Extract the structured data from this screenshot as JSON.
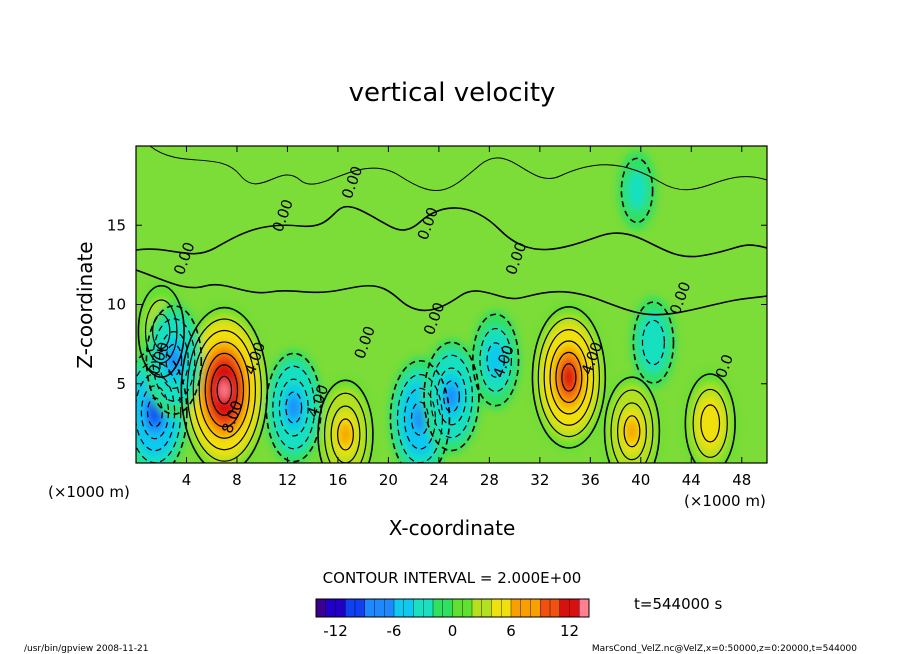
{
  "chart_data": {
    "type": "heatmap",
    "title": "vertical velocity",
    "xlabel": "X-coordinate",
    "ylabel": "Z-coordinate",
    "x_unit": "(×1000 m)",
    "y_unit": "(×1000 m)",
    "xlim": [
      0,
      50
    ],
    "ylim": [
      0,
      20
    ],
    "x_ticks": [
      4,
      8,
      12,
      16,
      20,
      24,
      28,
      32,
      36,
      40,
      44,
      48
    ],
    "y_ticks": [
      5,
      10,
      15
    ],
    "contour_interval": "CONTOUR INTERVAL = 2.000E+00",
    "time": "t=544000 s",
    "colorbar": {
      "min": -14,
      "max": 14,
      "ticks": [
        -12,
        -6,
        0,
        6,
        12
      ]
    },
    "contour_labels": [
      {
        "text": "0.00",
        "x": 4.2,
        "y": 12.8
      },
      {
        "text": "0.00",
        "x": 12.0,
        "y": 15.5
      },
      {
        "text": "0.00",
        "x": 17.5,
        "y": 17.6
      },
      {
        "text": "0.00",
        "x": 23.5,
        "y": 15.0
      },
      {
        "text": "0.00",
        "x": 30.5,
        "y": 12.8
      },
      {
        "text": "0.00",
        "x": 43.5,
        "y": 10.3
      },
      {
        "text": "0.00",
        "x": 18.5,
        "y": 7.5
      },
      {
        "text": "0.00",
        "x": 24.0,
        "y": 9.0
      },
      {
        "text": "4.00",
        "x": 9.8,
        "y": 6.5
      },
      {
        "text": "8.00",
        "x": 8.0,
        "y": 2.8
      },
      {
        "text": "4.00",
        "x": 14.8,
        "y": 3.8
      },
      {
        "text": "4.00",
        "x": 29.5,
        "y": 6.3
      },
      {
        "text": "4.00",
        "x": 36.5,
        "y": 6.5
      },
      {
        "text": "0.0",
        "x": 47.0,
        "y": 6.0
      },
      {
        "text": "0.00",
        "x": 2.2,
        "y": 6.5
      }
    ],
    "features": [
      {
        "x": 7.0,
        "y": 4.6,
        "value": 14
      },
      {
        "x": 34.3,
        "y": 5.4,
        "value": 11
      },
      {
        "x": 16.6,
        "y": 1.8,
        "value": 7
      },
      {
        "x": 39.3,
        "y": 2.0,
        "value": 7
      },
      {
        "x": 45.5,
        "y": 2.5,
        "value": 6
      },
      {
        "x": 2.0,
        "y": 8.3,
        "value": 5
      },
      {
        "x": 1.5,
        "y": 3.2,
        "value": -9
      },
      {
        "x": 3.0,
        "y": 6.5,
        "value": -7
      },
      {
        "x": 12.5,
        "y": 3.5,
        "value": -7
      },
      {
        "x": 22.5,
        "y": 2.8,
        "value": -8
      },
      {
        "x": 25.0,
        "y": 4.2,
        "value": -7
      },
      {
        "x": 28.5,
        "y": 6.5,
        "value": -5
      },
      {
        "x": 41.0,
        "y": 7.6,
        "value": -4
      },
      {
        "x": 39.7,
        "y": 17.2,
        "value": -2.5
      }
    ]
  },
  "footer": {
    "left": "/usr/bin/gpview   2008-11-21",
    "right": "MarsCond_VelZ.nc@VelZ,x=0:50000,z=0:20000,t=544000"
  },
  "colors": {
    "palette": [
      "#3a0090",
      "#2000c8",
      "#1040f0",
      "#1e88ff",
      "#10c8f0",
      "#18e0c0",
      "#30e060",
      "#60e030",
      "#b4e020",
      "#f0e010",
      "#f8a000",
      "#f05010",
      "#d81010",
      "#ff8090"
    ]
  }
}
